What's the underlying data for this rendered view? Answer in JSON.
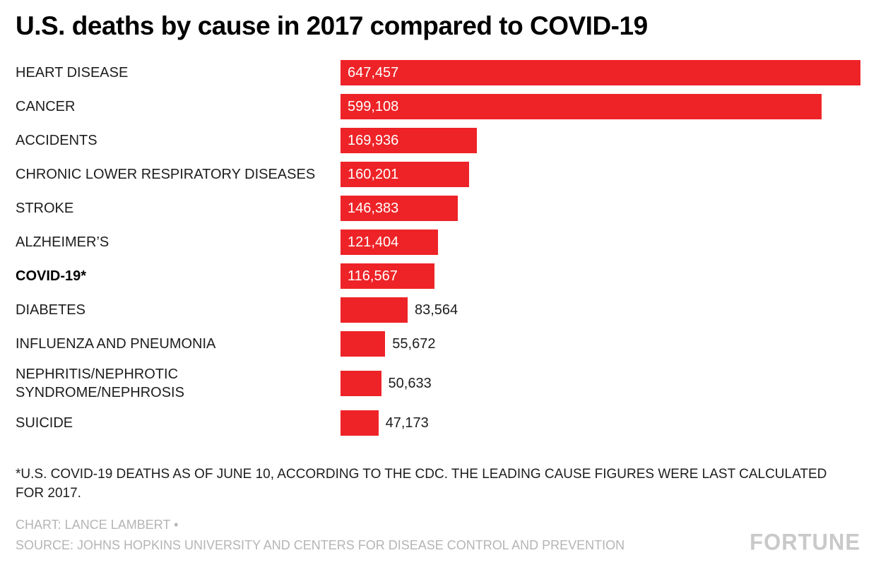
{
  "chart": {
    "title": "U.S. deaths by cause in 2017 compared to COVID-19",
    "footnote": "*U.S. COVID-19 DEATHS AS OF JUNE 10, ACCORDING TO THE CDC. THE LEADING CAUSE FIGURES WERE LAST CALCULATED FOR 2017.",
    "credit": "CHART: LANCE LAMBERT •",
    "source": "SOURCE: JOHNS HOPKINS UNIVERSITY AND CENTERS FOR DISEASE CONTROL AND PREVENTION",
    "brand": "FORTUNE"
  },
  "chart_data": {
    "type": "bar",
    "orientation": "horizontal",
    "title": "U.S. deaths by cause in 2017 compared to COVID-19",
    "categories": [
      "HEART DISEASE",
      "CANCER",
      "ACCIDENTS",
      "CHRONIC LOWER RESPIRATORY DISEASES",
      "STROKE",
      "ALZHEIMER’S",
      "COVID-19*",
      "DIABETES",
      "INFLUENZA AND PNEUMONIA",
      "NEPHRITIS/NEPHROTIC SYNDROME/NEPHROSIS",
      "SUICIDE"
    ],
    "values": [
      647457,
      599108,
      169936,
      160201,
      146383,
      121404,
      116567,
      83564,
      55672,
      50633,
      47173
    ],
    "value_labels": [
      "647,457",
      "599,108",
      "169,936",
      "160,201",
      "146,383",
      "121,404",
      "116,567",
      "83,564",
      "55,672",
      "50,633",
      "47,173"
    ],
    "bold_categories": [
      "COVID-19*"
    ],
    "bar_color": "#ee2327",
    "xlim": [
      0,
      647457
    ],
    "label_inside_threshold": 100000,
    "legend": "none",
    "grid": "off"
  }
}
